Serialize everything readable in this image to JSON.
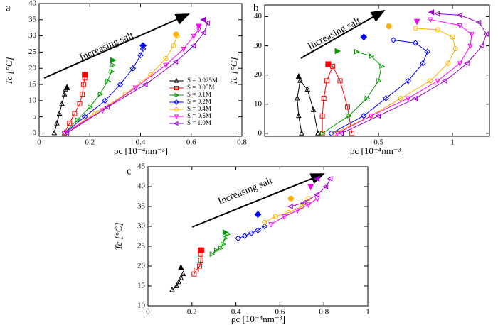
{
  "chart_data": [
    {
      "type": "line",
      "panel_label": "a",
      "annotation": "Increasing salt",
      "xlabel": "ρc [10⁻⁴nm⁻³]",
      "ylabel": "Tc [°C]",
      "xlim": [
        0,
        0.8
      ],
      "ylim": [
        -1,
        40
      ],
      "xticks": [
        0,
        0.2,
        0.4,
        0.6,
        0.8
      ],
      "yticks": [
        0,
        5,
        10,
        15,
        20,
        25,
        30,
        35,
        40
      ],
      "legend": "right",
      "series": [
        {
          "name": "S = 0.025M",
          "color": "#000000",
          "marker": "triangle-up",
          "x": [
            0.06,
            0.07,
            0.08,
            0.09,
            0.1,
            0.105
          ],
          "values": [
            0,
            3,
            6,
            9,
            12,
            13.5
          ],
          "critical_x": 0.11,
          "critical_y": 14
        },
        {
          "name": "S = 0.05M",
          "color": "#ff0000",
          "marker": "square",
          "x": [
            0.1,
            0.12,
            0.14,
            0.16,
            0.17,
            0.175,
            0.18
          ],
          "values": [
            0,
            3,
            6,
            9,
            12,
            15,
            17
          ],
          "critical_x": 0.18,
          "critical_y": 18
        },
        {
          "name": "S = 0.1M",
          "color": "#009900",
          "marker": "triangle-right",
          "x": [
            0.1,
            0.15,
            0.2,
            0.24,
            0.27,
            0.285,
            0.29
          ],
          "values": [
            0,
            4,
            8,
            12,
            16,
            19,
            21
          ],
          "critical_x": 0.29,
          "critical_y": 22.5
        },
        {
          "name": "S = 0.2M",
          "color": "#0000ff",
          "marker": "diamond",
          "x": [
            0.1,
            0.18,
            0.26,
            0.32,
            0.37,
            0.4,
            0.41
          ],
          "values": [
            0,
            5,
            10,
            15,
            20,
            24,
            26
          ],
          "critical_x": 0.41,
          "critical_y": 27
        },
        {
          "name": "S = 0.4M",
          "color": "#ffb000",
          "marker": "circle",
          "x": [
            0.1,
            0.22,
            0.34,
            0.44,
            0.5,
            0.53,
            0.545
          ],
          "values": [
            0,
            6,
            12,
            18,
            23,
            27,
            30
          ],
          "critical_x": 0.54,
          "critical_y": 30.5
        },
        {
          "name": "S = 0.5M",
          "color": "#ff00ff",
          "marker": "triangle-down",
          "x": [
            0.1,
            0.25,
            0.38,
            0.5,
            0.57,
            0.61,
            0.63
          ],
          "values": [
            0,
            7,
            14,
            21,
            26,
            30,
            32
          ],
          "critical_x": 0.63,
          "critical_y": 33
        },
        {
          "name": "S = 1.0M",
          "color": "#9900cc",
          "marker": "triangle-left",
          "x": [
            0.11,
            0.27,
            0.42,
            0.54,
            0.61,
            0.65,
            0.665
          ],
          "values": [
            0,
            8,
            15,
            22,
            27,
            31,
            34
          ],
          "critical_x": 0.65,
          "critical_y": 35
        }
      ]
    },
    {
      "type": "line",
      "panel_label": "b",
      "annotation": "Increasing salt",
      "xlabel": "ρc [10⁻⁴nm⁻³]",
      "ylabel": "Tc [°C]",
      "xlim": [
        -0.27,
        1.25
      ],
      "ylim": [
        -1,
        44
      ],
      "xticks": [
        0.5,
        1
      ],
      "yticks": [
        0,
        10,
        20,
        30,
        40
      ],
      "series": [
        {
          "color": "#000000",
          "marker": "triangle-up",
          "x": [
            -0.02,
            -0.04,
            -0.05,
            -0.03,
            0.02,
            0.06,
            0.09
          ],
          "values": [
            0,
            6,
            12,
            18,
            15,
            8,
            0
          ],
          "critical_x": -0.04,
          "critical_y": 19.4
        },
        {
          "color": "#ff0000",
          "marker": "square",
          "x": [
            0.12,
            0.12,
            0.13,
            0.15,
            0.19,
            0.24,
            0.29,
            0.32
          ],
          "values": [
            0,
            6,
            12,
            18,
            23,
            18,
            9,
            0
          ],
          "critical_x": 0.16,
          "critical_y": 23.7
        },
        {
          "color": "#009900",
          "marker": "triangle-right",
          "x": [
            0.12,
            0.3,
            0.42,
            0.5,
            0.52,
            0.45,
            0.35
          ],
          "values": [
            0,
            6,
            12,
            18,
            23,
            26.5,
            28
          ],
          "critical_x": 0.22,
          "critical_y": 28.2
        },
        {
          "color": "#0000ff",
          "marker": "diamond",
          "x": [
            0.18,
            0.4,
            0.55,
            0.7,
            0.8,
            0.83,
            0.75,
            0.6
          ],
          "values": [
            0,
            6,
            12,
            18,
            24,
            28,
            31,
            32
          ],
          "critical_x": 0.4,
          "critical_y": 33
        },
        {
          "color": "#ffb000",
          "marker": "circle",
          "x": [
            0.2,
            0.45,
            0.65,
            0.85,
            0.97,
            1.02,
            1.0,
            0.9,
            0.75
          ],
          "values": [
            0,
            6,
            12,
            18,
            24,
            29,
            33,
            35.5,
            36
          ],
          "critical_x": 0.57,
          "critical_y": 36.7
        },
        {
          "color": "#ff00ff",
          "marker": "triangle-down",
          "x": [
            0.22,
            0.45,
            0.7,
            0.9,
            1.05,
            1.12,
            1.13,
            1.05,
            0.85
          ],
          "values": [
            0,
            6,
            12,
            18,
            24,
            30,
            34,
            37,
            39
          ],
          "critical_x": 0.76,
          "critical_y": 38.4
        },
        {
          "color": "#9900cc",
          "marker": "triangle-left",
          "x": [
            0.25,
            0.5,
            0.75,
            0.95,
            1.1,
            1.2,
            1.23,
            1.18,
            1.05,
            0.9
          ],
          "values": [
            0,
            6,
            12,
            18,
            24,
            30,
            34,
            38,
            40.5,
            41
          ],
          "critical_x": 0.86,
          "critical_y": 41.5
        }
      ]
    },
    {
      "type": "line",
      "panel_label": "c",
      "annotation": "Increasing salt",
      "xlabel": "ρc [10⁻⁴nm⁻³]",
      "ylabel": "Tc [°C]",
      "xlim": [
        0,
        1
      ],
      "ylim": [
        10,
        45
      ],
      "xticks": [
        0,
        0.2,
        0.4,
        0.6,
        0.8,
        1
      ],
      "yticks": [
        10,
        15,
        20,
        25,
        30,
        35,
        40,
        45
      ],
      "series": [
        {
          "color": "#000000",
          "marker": "triangle-up",
          "x": [
            0.11,
            0.13,
            0.14,
            0.15,
            0.16
          ],
          "values": [
            14,
            15,
            16,
            17,
            18
          ],
          "critical_x": 0.15,
          "critical_y": 19.6
        },
        {
          "color": "#ff0000",
          "marker": "square",
          "x": [
            0.21,
            0.22,
            0.235,
            0.24,
            0.24,
            0.245
          ],
          "values": [
            18,
            19,
            20,
            21.5,
            23,
            24
          ],
          "critical_x": 0.24,
          "critical_y": 24
        },
        {
          "color": "#009900",
          "marker": "triangle-right",
          "x": [
            0.29,
            0.31,
            0.33,
            0.34,
            0.35,
            0.36
          ],
          "values": [
            23,
            24,
            24.5,
            25.5,
            27,
            28
          ],
          "critical_x": 0.35,
          "critical_y": 28.5
        },
        {
          "color": "#0000ff",
          "marker": "diamond",
          "x": [
            0.41,
            0.44,
            0.47,
            0.5,
            0.53
          ],
          "values": [
            27,
            27.6,
            28.3,
            29,
            30
          ],
          "critical_x": 0.5,
          "critical_y": 33
        },
        {
          "color": "#ffb000",
          "marker": "circle",
          "x": [
            0.53,
            0.58,
            0.64,
            0.7,
            0.73
          ],
          "values": [
            31,
            32.5,
            33.5,
            35,
            37
          ],
          "critical_x": 0.65,
          "critical_y": 37
        },
        {
          "color": "#ff00ff",
          "marker": "triangle-down",
          "x": [
            0.56,
            0.62,
            0.68,
            0.73,
            0.77
          ],
          "values": [
            30.5,
            32.5,
            34,
            35.5,
            37
          ],
          "critical_x": 0.74,
          "critical_y": 40
        },
        {
          "color": "#9900cc",
          "marker": "triangle-left",
          "x": [
            0.65,
            0.71,
            0.77,
            0.81,
            0.83
          ],
          "values": [
            35,
            36,
            38,
            40,
            42
          ],
          "critical_x": 0.77,
          "critical_y": 42
        }
      ]
    }
  ]
}
